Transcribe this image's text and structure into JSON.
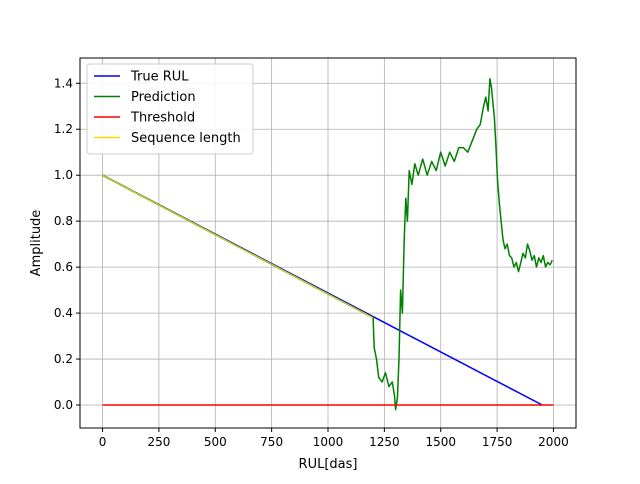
{
  "chart_data": {
    "type": "line",
    "xlabel": "RUL[das]",
    "ylabel": "Amplitude",
    "xlim": [
      -100,
      2100
    ],
    "ylim": [
      -0.1,
      1.51
    ],
    "x_ticks": [
      0,
      250,
      500,
      750,
      1000,
      1250,
      1500,
      1750,
      2000
    ],
    "y_ticks": [
      0.0,
      0.2,
      0.4,
      0.6,
      0.8,
      1.0,
      1.2,
      1.4
    ],
    "y_tick_labels": [
      "0.0",
      "0.2",
      "0.4",
      "0.6",
      "0.8",
      "1.0",
      "1.2",
      "1.4"
    ],
    "grid": true,
    "legend_position": "top-left",
    "series": [
      {
        "name": "True RUL",
        "color": "#0000ff",
        "points": [
          [
            0,
            1.0
          ],
          [
            1950,
            0.0
          ]
        ]
      },
      {
        "name": "Prediction",
        "color": "#008000",
        "points": [
          [
            0,
            1.0
          ],
          [
            1200,
            0.38
          ],
          [
            1205,
            0.25
          ],
          [
            1215,
            0.2
          ],
          [
            1225,
            0.12
          ],
          [
            1240,
            0.1
          ],
          [
            1255,
            0.14
          ],
          [
            1270,
            0.08
          ],
          [
            1285,
            0.1
          ],
          [
            1295,
            0.04
          ],
          [
            1300,
            -0.02
          ],
          [
            1308,
            0.03
          ],
          [
            1315,
            0.2
          ],
          [
            1322,
            0.5
          ],
          [
            1330,
            0.4
          ],
          [
            1338,
            0.72
          ],
          [
            1345,
            0.9
          ],
          [
            1352,
            0.8
          ],
          [
            1360,
            1.02
          ],
          [
            1372,
            0.96
          ],
          [
            1385,
            1.05
          ],
          [
            1400,
            1.0
          ],
          [
            1420,
            1.07
          ],
          [
            1440,
            1.0
          ],
          [
            1460,
            1.06
          ],
          [
            1480,
            1.02
          ],
          [
            1500,
            1.1
          ],
          [
            1520,
            1.04
          ],
          [
            1540,
            1.1
          ],
          [
            1560,
            1.06
          ],
          [
            1580,
            1.12
          ],
          [
            1600,
            1.12
          ],
          [
            1620,
            1.1
          ],
          [
            1640,
            1.15
          ],
          [
            1660,
            1.2
          ],
          [
            1675,
            1.22
          ],
          [
            1690,
            1.3
          ],
          [
            1700,
            1.34
          ],
          [
            1710,
            1.28
          ],
          [
            1718,
            1.42
          ],
          [
            1725,
            1.38
          ],
          [
            1730,
            1.33
          ],
          [
            1738,
            1.25
          ],
          [
            1745,
            1.12
          ],
          [
            1752,
            0.98
          ],
          [
            1760,
            0.88
          ],
          [
            1768,
            0.8
          ],
          [
            1776,
            0.72
          ],
          [
            1785,
            0.68
          ],
          [
            1795,
            0.7
          ],
          [
            1805,
            0.65
          ],
          [
            1815,
            0.64
          ],
          [
            1825,
            0.6
          ],
          [
            1835,
            0.62
          ],
          [
            1845,
            0.58
          ],
          [
            1855,
            0.62
          ],
          [
            1865,
            0.66
          ],
          [
            1875,
            0.64
          ],
          [
            1885,
            0.7
          ],
          [
            1895,
            0.67
          ],
          [
            1905,
            0.63
          ],
          [
            1915,
            0.65
          ],
          [
            1925,
            0.6
          ],
          [
            1935,
            0.64
          ],
          [
            1945,
            0.62
          ],
          [
            1955,
            0.65
          ],
          [
            1965,
            0.6
          ],
          [
            1975,
            0.62
          ],
          [
            1985,
            0.61
          ],
          [
            1995,
            0.63
          ]
        ]
      },
      {
        "name": "Threshold",
        "color": "#ff0000",
        "points": [
          [
            0,
            0.0
          ],
          [
            2000,
            0.0
          ]
        ]
      },
      {
        "name": "Sequence length",
        "color": "#ffd700",
        "points": [
          [
            0,
            1.0
          ],
          [
            1200,
            0.38
          ]
        ]
      }
    ]
  }
}
